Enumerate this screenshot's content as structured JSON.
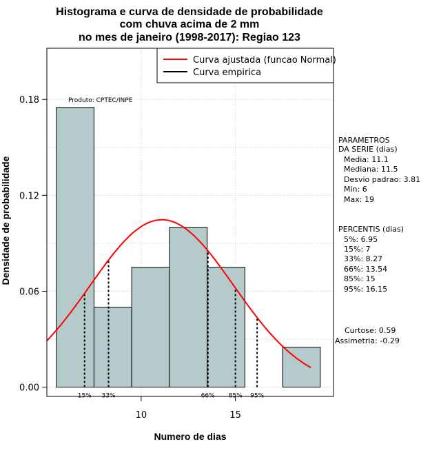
{
  "chart_data": {
    "type": "bar",
    "title_lines": [
      "Histograma e curva de densidade de probabilidade",
      "com chuva acima de 2 mm",
      "no mes de janeiro (1998-2017): Regiao 123"
    ],
    "xlabel": "Numero de dias",
    "ylabel": "Densidade de probabilidade",
    "xlim": [
      5,
      20.2
    ],
    "ylim": [
      -0.0058,
      0.212
    ],
    "x_ticks": [
      10,
      15
    ],
    "y_ticks": [
      0.0,
      0.06,
      0.12,
      0.18
    ],
    "y_tick_labels": [
      "0.00",
      "0.06",
      "0.12",
      "0.18"
    ],
    "grid": true,
    "bins": [
      {
        "x0": 5.5,
        "x1": 7.5,
        "density": 0.175
      },
      {
        "x0": 7.5,
        "x1": 9.5,
        "density": 0.05
      },
      {
        "x0": 9.5,
        "x1": 11.5,
        "density": 0.075
      },
      {
        "x0": 11.5,
        "x1": 13.5,
        "density": 0.1
      },
      {
        "x0": 13.5,
        "x1": 15.5,
        "density": 0.075
      },
      {
        "x0": 17.5,
        "x1": 19.5,
        "density": 0.025
      }
    ],
    "bar_color": "#b5cbcb",
    "normal_curve": {
      "name": "Curva ajustada (funcao Normal)",
      "mean": 11.1,
      "sd": 3.81,
      "x_from": 5,
      "x_to": 19,
      "color": "#ff0000"
    },
    "empirical_curve": {
      "name": "Curva empirica",
      "color": "#000000"
    },
    "percentile_markers": [
      {
        "label": "15%",
        "x": 7
      },
      {
        "label": "33%",
        "x": 8.27
      },
      {
        "label": "66%",
        "x": 13.54
      },
      {
        "label": "85%",
        "x": 15
      },
      {
        "label": "95%",
        "x": 16.15
      }
    ],
    "legend_position": "top-right",
    "annotation": "Produto: CPTEC/INPE",
    "parametros": {
      "heading": [
        "PARAMETROS",
        "DA SERIE (dias)"
      ],
      "lines": [
        "Media: 11.1",
        "Mediana: 11.5",
        "Desvio padrao: 3.81",
        "Min: 6",
        "Max: 19"
      ]
    },
    "percentis": {
      "heading": "PERCENTIS (dias)",
      "lines": [
        "5%: 6.95",
        "15%: 7",
        "33%: 8.27",
        "66%: 13.54",
        "85%: 15",
        "95%: 16.15"
      ]
    },
    "shape": {
      "lines": [
        "Curtose: 0.59",
        "Assimetria: -0.29"
      ]
    }
  }
}
